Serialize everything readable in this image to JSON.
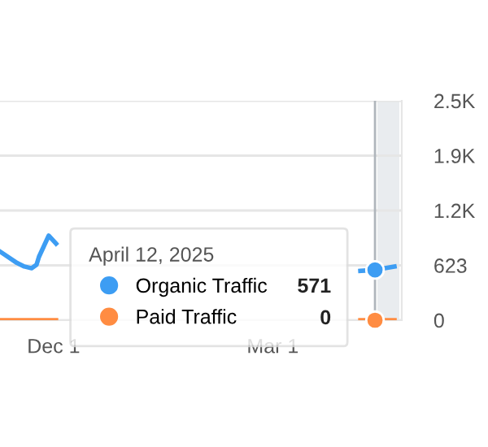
{
  "chart_data": {
    "type": "line",
    "x": [
      "2024-11-09",
      "2024-11-16",
      "2024-11-19",
      "2024-11-22",
      "2024-11-24",
      "2024-11-25",
      "2024-11-27",
      "2024-11-29",
      "2024-11-30",
      "2024-12-02",
      "2025-01-15",
      "2025-04-06",
      "2025-04-12",
      "2025-04-16",
      "2025-04-20"
    ],
    "series": [
      {
        "name": "Organic Traffic",
        "color": "#3d9df3",
        "values": [
          780,
          650,
          610,
          590,
          630,
          720,
          840,
          960,
          930,
          870,
          null,
          560,
          571,
          590,
          610
        ]
      },
      {
        "name": "Paid Traffic",
        "color": "#ff8c42",
        "values": [
          0,
          0,
          0,
          0,
          0,
          0,
          0,
          0,
          0,
          0,
          null,
          0,
          0,
          0,
          0
        ]
      },
      {
        "type": "scatter",
        "color": "#3d9df3",
        "x": [
          "2025-04-12"
        ],
        "values": [
          571
        ]
      },
      {
        "type": "scatter",
        "color": "#ff8c42",
        "x": [
          "2025-04-12"
        ],
        "values": [
          0
        ]
      }
    ],
    "xlim": [
      "2024-11-09",
      "2025-04-23"
    ],
    "xticks": [
      {
        "value": "2024-12-01",
        "label": "Dec 1"
      },
      {
        "value": "2025-03-01",
        "label": "Mar 1"
      }
    ],
    "ylim": [
      0,
      2492
    ],
    "yticks": [
      0,
      623,
      {
        "value": 1246,
        "label": "1.2K"
      },
      {
        "value": 1869,
        "label": "1.9K"
      },
      {
        "value": 2492,
        "label": "2.5K"
      }
    ],
    "grid": "y",
    "legend": "center",
    "legend_title": "April 12, 2025",
    "annotations": [
      "571",
      "0"
    ],
    "ref_lines": [
      {
        "axis": "x",
        "value": "2025-04-12",
        "color": "#b0b6bc"
      }
    ],
    "bands": [
      {
        "axis": "x",
        "from": "2025-04-13",
        "to": "2025-04-22",
        "color": "#e9ecef"
      }
    ]
  }
}
